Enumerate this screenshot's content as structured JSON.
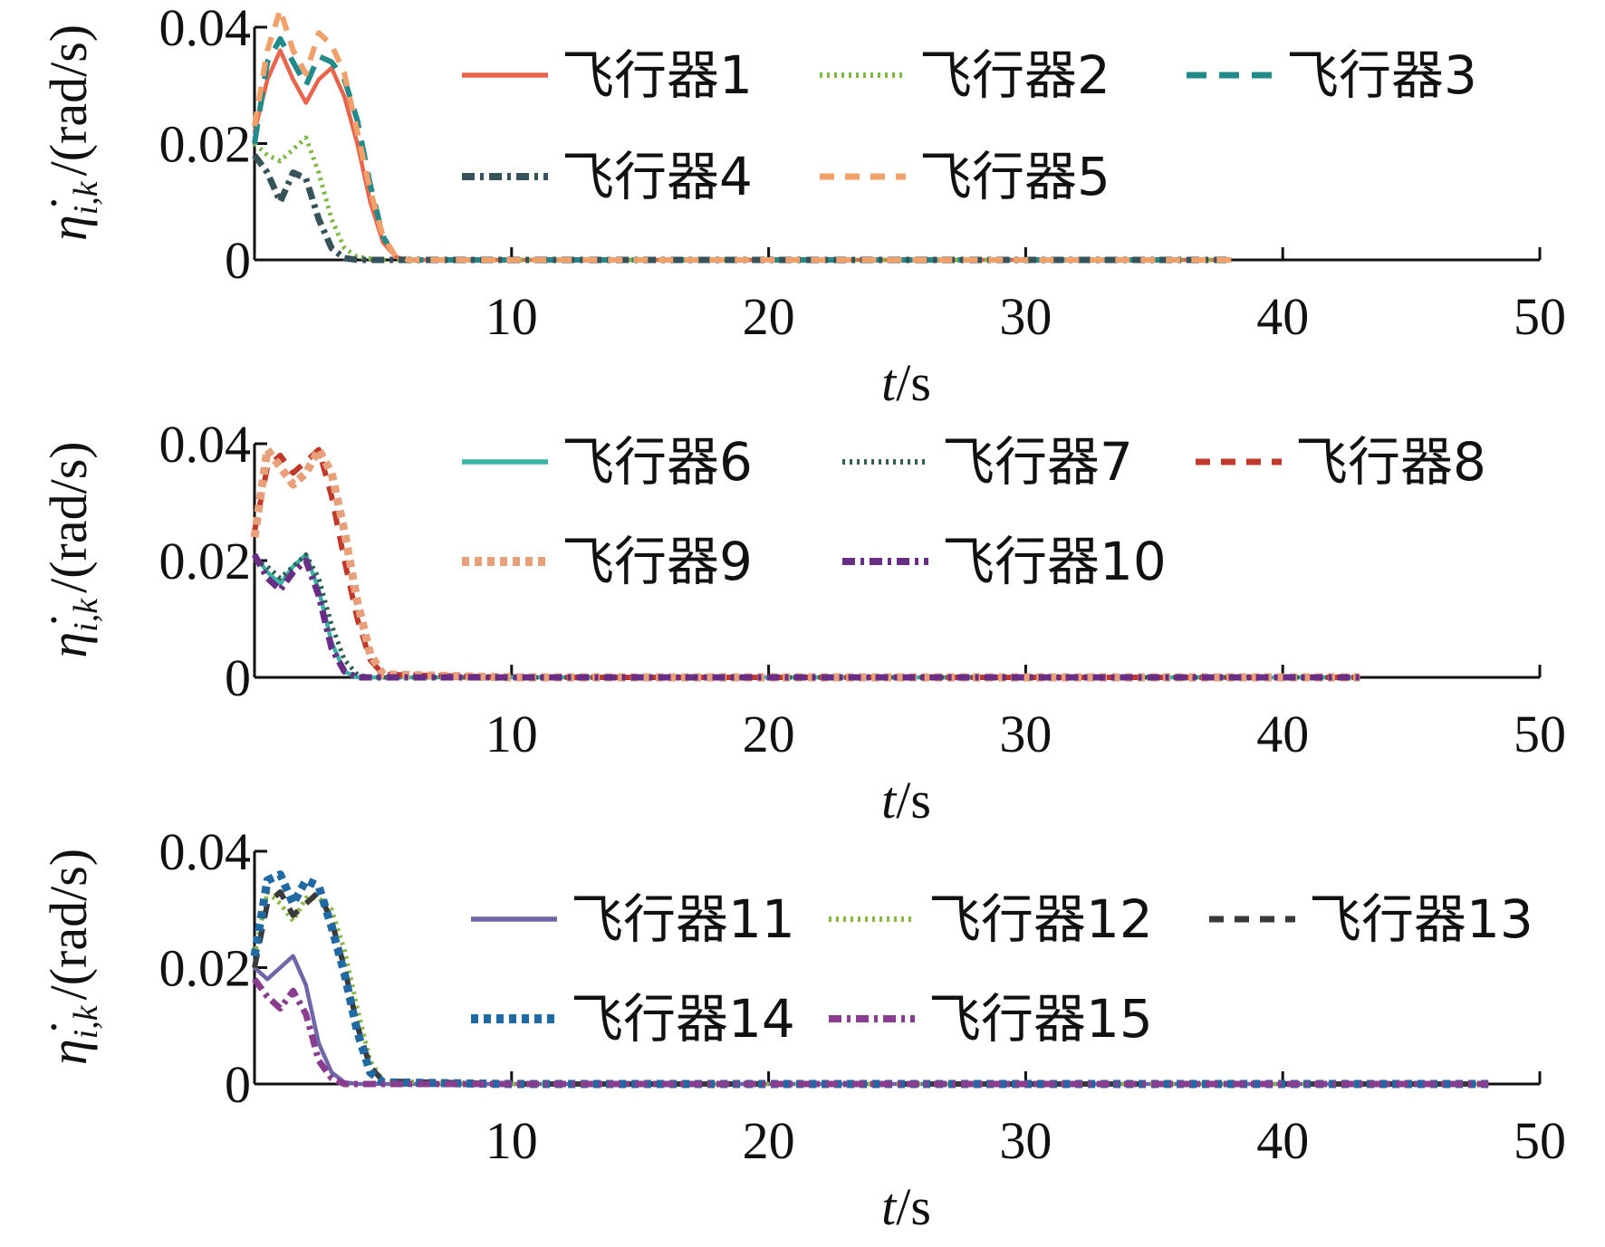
{
  "chart_data": [
    {
      "type": "line",
      "xlabel": "t/s",
      "ylabel": "η̇_{i,k} /(rad/s)",
      "xlim": [
        0,
        50
      ],
      "ylim": [
        0,
        0.04
      ],
      "xticks": [
        "10",
        "20",
        "30",
        "40",
        "50"
      ],
      "yticks": [
        "0",
        "0.02",
        "0.04"
      ],
      "series": [
        {
          "name": "飞行器1",
          "color": "#e8644a",
          "dash": "solid",
          "x": [
            0,
            0.5,
            1,
            1.5,
            2,
            2.5,
            3,
            3.5,
            4,
            4.5,
            5,
            5.5,
            6,
            10,
            20,
            30,
            38
          ],
          "y": [
            0.022,
            0.031,
            0.036,
            0.031,
            0.027,
            0.031,
            0.033,
            0.028,
            0.02,
            0.01,
            0.003,
            0.0005,
            0,
            0,
            0,
            0,
            0
          ]
        },
        {
          "name": "飞行器2",
          "color": "#7fb843",
          "dash": "dot",
          "x": [
            0,
            0.5,
            1,
            1.5,
            2,
            2.5,
            3,
            3.5,
            4,
            5,
            10,
            20,
            30,
            38
          ],
          "y": [
            0.02,
            0.018,
            0.017,
            0.019,
            0.021,
            0.015,
            0.007,
            0.002,
            0.0005,
            0,
            0,
            0,
            0,
            0
          ]
        },
        {
          "name": "飞行器3",
          "color": "#238a8a",
          "dash": "dash",
          "x": [
            0,
            0.5,
            1,
            1.5,
            2,
            2.5,
            3,
            3.5,
            4,
            4.5,
            5,
            5.5,
            6,
            10,
            20,
            30,
            38
          ],
          "y": [
            0.02,
            0.034,
            0.038,
            0.034,
            0.03,
            0.035,
            0.034,
            0.031,
            0.024,
            0.013,
            0.004,
            0.0005,
            0,
            0,
            0,
            0,
            0
          ]
        },
        {
          "name": "飞行器4",
          "color": "#36525a",
          "dash": "dashdot",
          "x": [
            0,
            0.5,
            1,
            1.5,
            2,
            2.5,
            3,
            3.5,
            4,
            10,
            20,
            30,
            38
          ],
          "y": [
            0.018,
            0.015,
            0.01,
            0.015,
            0.014,
            0.007,
            0.002,
            0.0003,
            0,
            0,
            0,
            0,
            0
          ]
        },
        {
          "name": "飞行器5",
          "color": "#f2a06a",
          "dash": "longdash",
          "x": [
            0,
            0.5,
            1,
            1.5,
            2,
            2.5,
            3,
            3.5,
            4,
            4.5,
            5,
            5.5,
            6,
            10,
            20,
            30,
            38
          ],
          "y": [
            0.023,
            0.036,
            0.043,
            0.036,
            0.032,
            0.039,
            0.037,
            0.032,
            0.022,
            0.012,
            0.004,
            0.0005,
            0,
            0,
            0,
            0,
            0
          ]
        }
      ]
    },
    {
      "type": "line",
      "xlabel": "t/s",
      "ylabel": "η̇_{i,k} /(rad/s)",
      "xlim": [
        0,
        50
      ],
      "ylim": [
        0,
        0.04
      ],
      "xticks": [
        "10",
        "20",
        "30",
        "40",
        "50"
      ],
      "yticks": [
        "0",
        "0.02",
        "0.04"
      ],
      "series": [
        {
          "name": "飞行器6",
          "color": "#39b3a6",
          "dash": "solid",
          "x": [
            0,
            0.5,
            1,
            1.5,
            2,
            2.5,
            3,
            3.5,
            4,
            10,
            20,
            30,
            43
          ],
          "y": [
            0.021,
            0.018,
            0.016,
            0.019,
            0.021,
            0.015,
            0.006,
            0.001,
            0,
            0,
            0,
            0,
            0
          ]
        },
        {
          "name": "飞行器7",
          "color": "#2c5f4f",
          "dash": "dot",
          "x": [
            0,
            0.5,
            1,
            1.5,
            2,
            2.5,
            3,
            3.5,
            4,
            4.5,
            10,
            20,
            30,
            43
          ],
          "y": [
            0.02,
            0.019,
            0.017,
            0.019,
            0.021,
            0.017,
            0.009,
            0.003,
            0.0005,
            0,
            0,
            0,
            0,
            0
          ]
        },
        {
          "name": "飞行器8",
          "color": "#c0392b",
          "dash": "longdash",
          "x": [
            0,
            0.5,
            1,
            1.5,
            2,
            2.5,
            3,
            3.5,
            4,
            4.5,
            5,
            10,
            20,
            30,
            43
          ],
          "y": [
            0.025,
            0.036,
            0.038,
            0.035,
            0.037,
            0.039,
            0.031,
            0.02,
            0.01,
            0.003,
            0.0005,
            0,
            0,
            0,
            0
          ]
        },
        {
          "name": "飞行器9",
          "color": "#e8a07a",
          "dash": "thickdot",
          "x": [
            0,
            0.5,
            1,
            1.5,
            2,
            2.5,
            3,
            3.5,
            4,
            4.5,
            5,
            10,
            20,
            30,
            43
          ],
          "y": [
            0.024,
            0.039,
            0.036,
            0.033,
            0.035,
            0.039,
            0.035,
            0.025,
            0.013,
            0.004,
            0.0005,
            0,
            0,
            0,
            0
          ]
        },
        {
          "name": "飞行器10",
          "color": "#6a2d86",
          "dash": "dashdot",
          "x": [
            0,
            0.5,
            1,
            1.5,
            2,
            2.5,
            3,
            3.5,
            4,
            10,
            20,
            30,
            43
          ],
          "y": [
            0.021,
            0.017,
            0.015,
            0.018,
            0.02,
            0.014,
            0.005,
            0.001,
            0,
            0,
            0,
            0,
            0
          ]
        }
      ]
    },
    {
      "type": "line",
      "xlabel": "t/s",
      "ylabel": "η̇_{i,k} /(rad/s)",
      "xlim": [
        0,
        50
      ],
      "ylim": [
        0,
        0.04
      ],
      "xticks": [
        "10",
        "20",
        "30",
        "40",
        "50"
      ],
      "yticks": [
        "0",
        "0.02",
        "0.04"
      ],
      "series": [
        {
          "name": "飞行器11",
          "color": "#7065a8",
          "dash": "solid",
          "x": [
            0,
            0.5,
            1,
            1.5,
            2,
            2.5,
            3,
            3.5,
            4,
            10,
            20,
            30,
            48
          ],
          "y": [
            0.02,
            0.018,
            0.02,
            0.022,
            0.017,
            0.007,
            0.002,
            0.0003,
            0,
            0,
            0,
            0,
            0
          ]
        },
        {
          "name": "飞行器12",
          "color": "#8ab83f",
          "dash": "dot",
          "x": [
            0,
            0.5,
            1,
            1.5,
            2,
            2.5,
            3,
            3.5,
            4,
            4.5,
            5,
            10,
            20,
            30,
            48
          ],
          "y": [
            0.022,
            0.033,
            0.031,
            0.028,
            0.032,
            0.032,
            0.03,
            0.023,
            0.013,
            0.004,
            0.0005,
            0,
            0,
            0,
            0
          ]
        },
        {
          "name": "飞行器13",
          "color": "#3a3a3a",
          "dash": "longdash",
          "x": [
            0,
            0.5,
            1,
            1.5,
            2,
            2.5,
            3,
            3.5,
            4,
            4.5,
            5,
            10,
            20,
            30,
            48
          ],
          "y": [
            0.02,
            0.031,
            0.033,
            0.029,
            0.031,
            0.033,
            0.028,
            0.02,
            0.01,
            0.003,
            0.0005,
            0,
            0,
            0,
            0
          ]
        },
        {
          "name": "飞行器14",
          "color": "#1f6aa5",
          "dash": "thickdot",
          "x": [
            0,
            0.5,
            1,
            1.5,
            2,
            2.5,
            3,
            3.5,
            4,
            4.5,
            5,
            10,
            20,
            30,
            48
          ],
          "y": [
            0.022,
            0.035,
            0.036,
            0.031,
            0.035,
            0.034,
            0.027,
            0.019,
            0.009,
            0.002,
            0.0003,
            0,
            0,
            0,
            0
          ]
        },
        {
          "name": "飞行器15",
          "color": "#8a3d8f",
          "dash": "dashdot",
          "x": [
            0,
            0.5,
            1,
            1.5,
            2,
            2.5,
            3,
            3.5,
            10,
            20,
            30,
            48
          ],
          "y": [
            0.018,
            0.015,
            0.013,
            0.016,
            0.012,
            0.004,
            0.001,
            0,
            0,
            0,
            0,
            0
          ]
        }
      ]
    }
  ]
}
